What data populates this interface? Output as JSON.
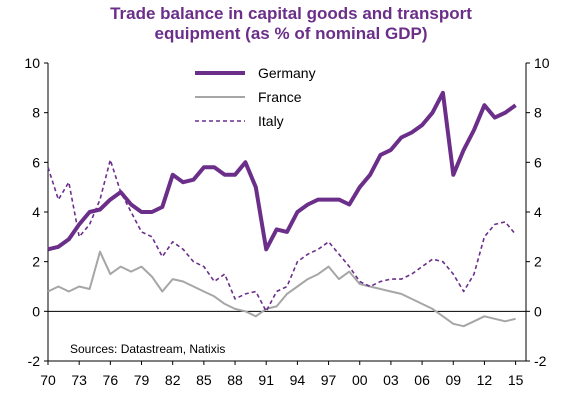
{
  "chart_data": {
    "type": "line",
    "title_line1": "Trade balance in capital goods and transport",
    "title_line2": "equipment (as % of nominal GDP)",
    "ylim": [
      -2,
      10
    ],
    "xlim": [
      1970,
      2016
    ],
    "y_ticks": [
      -2,
      0,
      2,
      4,
      6,
      8,
      10
    ],
    "x_ticks": [
      {
        "year": 1970,
        "label": "70"
      },
      {
        "year": 1973,
        "label": "73"
      },
      {
        "year": 1976,
        "label": "76"
      },
      {
        "year": 1979,
        "label": "79"
      },
      {
        "year": 1982,
        "label": "82"
      },
      {
        "year": 1985,
        "label": "85"
      },
      {
        "year": 1988,
        "label": "88"
      },
      {
        "year": 1991,
        "label": "91"
      },
      {
        "year": 1994,
        "label": "94"
      },
      {
        "year": 1997,
        "label": "97"
      },
      {
        "year": 2000,
        "label": "00"
      },
      {
        "year": 2003,
        "label": "03"
      },
      {
        "year": 2006,
        "label": "06"
      },
      {
        "year": 2009,
        "label": "09"
      },
      {
        "year": 2012,
        "label": "12"
      },
      {
        "year": 2015,
        "label": "15"
      }
    ],
    "legend_position": "top-center",
    "source": "Sources: Datastream, Natixis",
    "series": [
      {
        "name": "Germany",
        "color": "#6b2f8a",
        "style": "solid-thick",
        "points": [
          [
            1970,
            2.5
          ],
          [
            1971,
            2.6
          ],
          [
            1972,
            2.9
          ],
          [
            1973,
            3.5
          ],
          [
            1974,
            4.0
          ],
          [
            1975,
            4.1
          ],
          [
            1976,
            4.5
          ],
          [
            1977,
            4.8
          ],
          [
            1978,
            4.3
          ],
          [
            1979,
            4.0
          ],
          [
            1980,
            4.0
          ],
          [
            1981,
            4.2
          ],
          [
            1982,
            5.5
          ],
          [
            1983,
            5.2
          ],
          [
            1984,
            5.3
          ],
          [
            1985,
            5.8
          ],
          [
            1986,
            5.8
          ],
          [
            1987,
            5.5
          ],
          [
            1988,
            5.5
          ],
          [
            1989,
            6.0
          ],
          [
            1990,
            5.0
          ],
          [
            1991,
            2.5
          ],
          [
            1992,
            3.3
          ],
          [
            1993,
            3.2
          ],
          [
            1994,
            4.0
          ],
          [
            1995,
            4.3
          ],
          [
            1996,
            4.5
          ],
          [
            1997,
            4.5
          ],
          [
            1998,
            4.5
          ],
          [
            1999,
            4.3
          ],
          [
            2000,
            5.0
          ],
          [
            2001,
            5.5
          ],
          [
            2002,
            6.3
          ],
          [
            2003,
            6.5
          ],
          [
            2004,
            7.0
          ],
          [
            2005,
            7.2
          ],
          [
            2006,
            7.5
          ],
          [
            2007,
            8.0
          ],
          [
            2008,
            8.8
          ],
          [
            2009,
            5.5
          ],
          [
            2010,
            6.5
          ],
          [
            2011,
            7.3
          ],
          [
            2012,
            8.3
          ],
          [
            2013,
            7.8
          ],
          [
            2014,
            8.0
          ],
          [
            2015,
            8.3
          ]
        ]
      },
      {
        "name": "France",
        "color": "#a6a6a6",
        "style": "solid",
        "points": [
          [
            1970,
            0.8
          ],
          [
            1971,
            1.0
          ],
          [
            1972,
            0.8
          ],
          [
            1973,
            1.0
          ],
          [
            1974,
            0.9
          ],
          [
            1975,
            2.4
          ],
          [
            1976,
            1.5
          ],
          [
            1977,
            1.8
          ],
          [
            1978,
            1.6
          ],
          [
            1979,
            1.8
          ],
          [
            1980,
            1.4
          ],
          [
            1981,
            0.8
          ],
          [
            1982,
            1.3
          ],
          [
            1983,
            1.2
          ],
          [
            1984,
            1.0
          ],
          [
            1985,
            0.8
          ],
          [
            1986,
            0.6
          ],
          [
            1987,
            0.3
          ],
          [
            1988,
            0.1
          ],
          [
            1989,
            0.0
          ],
          [
            1990,
            -0.2
          ],
          [
            1991,
            0.1
          ],
          [
            1992,
            0.2
          ],
          [
            1993,
            0.7
          ],
          [
            1994,
            1.0
          ],
          [
            1995,
            1.3
          ],
          [
            1996,
            1.5
          ],
          [
            1997,
            1.8
          ],
          [
            1998,
            1.3
          ],
          [
            1999,
            1.6
          ],
          [
            2000,
            1.1
          ],
          [
            2001,
            1.0
          ],
          [
            2002,
            0.9
          ],
          [
            2003,
            0.8
          ],
          [
            2004,
            0.7
          ],
          [
            2005,
            0.5
          ],
          [
            2006,
            0.3
          ],
          [
            2007,
            0.1
          ],
          [
            2008,
            -0.2
          ],
          [
            2009,
            -0.5
          ],
          [
            2010,
            -0.6
          ],
          [
            2011,
            -0.4
          ],
          [
            2012,
            -0.2
          ],
          [
            2013,
            -0.3
          ],
          [
            2014,
            -0.4
          ],
          [
            2015,
            -0.3
          ]
        ]
      },
      {
        "name": "Italy",
        "color": "#6b2f8a",
        "style": "dashed",
        "points": [
          [
            1970,
            5.8
          ],
          [
            1971,
            4.5
          ],
          [
            1972,
            5.2
          ],
          [
            1973,
            3.0
          ],
          [
            1974,
            3.5
          ],
          [
            1975,
            4.5
          ],
          [
            1976,
            6.1
          ],
          [
            1977,
            4.8
          ],
          [
            1978,
            4.0
          ],
          [
            1979,
            3.2
          ],
          [
            1980,
            3.0
          ],
          [
            1981,
            2.2
          ],
          [
            1982,
            2.8
          ],
          [
            1983,
            2.5
          ],
          [
            1984,
            2.0
          ],
          [
            1985,
            1.8
          ],
          [
            1986,
            1.2
          ],
          [
            1987,
            1.5
          ],
          [
            1988,
            0.5
          ],
          [
            1989,
            0.7
          ],
          [
            1990,
            0.8
          ],
          [
            1991,
            0.0
          ],
          [
            1992,
            0.8
          ],
          [
            1993,
            1.0
          ],
          [
            1994,
            2.0
          ],
          [
            1995,
            2.3
          ],
          [
            1996,
            2.5
          ],
          [
            1997,
            2.8
          ],
          [
            1998,
            2.3
          ],
          [
            1999,
            1.8
          ],
          [
            2000,
            1.2
          ],
          [
            2001,
            1.0
          ],
          [
            2002,
            1.2
          ],
          [
            2003,
            1.3
          ],
          [
            2004,
            1.3
          ],
          [
            2005,
            1.5
          ],
          [
            2006,
            1.8
          ],
          [
            2007,
            2.1
          ],
          [
            2008,
            2.0
          ],
          [
            2009,
            1.5
          ],
          [
            2010,
            0.8
          ],
          [
            2011,
            1.5
          ],
          [
            2012,
            3.0
          ],
          [
            2013,
            3.5
          ],
          [
            2014,
            3.6
          ],
          [
            2015,
            3.1
          ]
        ]
      }
    ]
  }
}
